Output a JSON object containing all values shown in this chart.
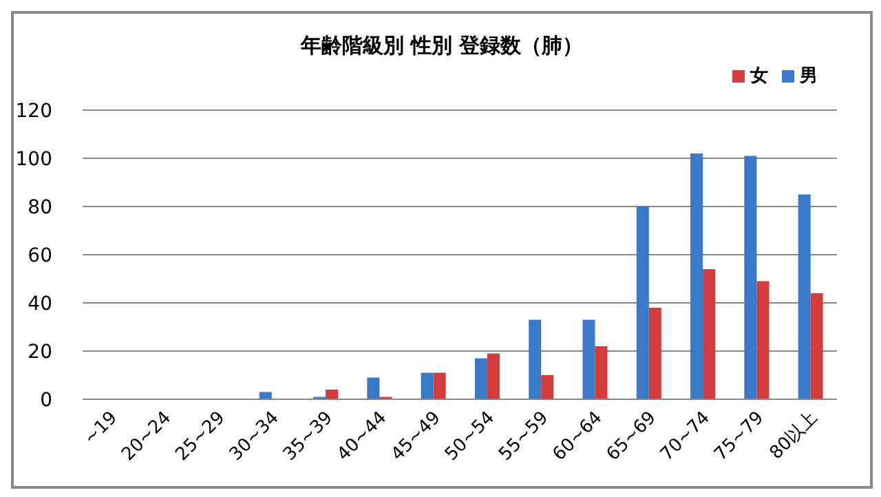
{
  "chart_data": {
    "type": "bar",
    "title": "年齢階級別 性別  登録数（肺）",
    "categories": [
      "~19",
      "20~24",
      "25~29",
      "30~34",
      "35~39",
      "40~44",
      "45~49",
      "50~54",
      "55~59",
      "60~64",
      "65~69",
      "70~74",
      "75~79",
      "80以上"
    ],
    "series": [
      {
        "name": "男",
        "color": "#3a78c8",
        "values": [
          0,
          0,
          0,
          3,
          1,
          9,
          11,
          17,
          33,
          33,
          80,
          102,
          101,
          85
        ]
      },
      {
        "name": "女",
        "color": "#d23c3c",
        "values": [
          0,
          0,
          0,
          0,
          4,
          1,
          11,
          19,
          10,
          22,
          38,
          54,
          49,
          44
        ]
      }
    ],
    "ylim": [
      0,
      120
    ],
    "yticks": [
      0,
      20,
      40,
      60,
      80,
      100,
      120
    ],
    "grid": "y",
    "legend": "top right"
  }
}
